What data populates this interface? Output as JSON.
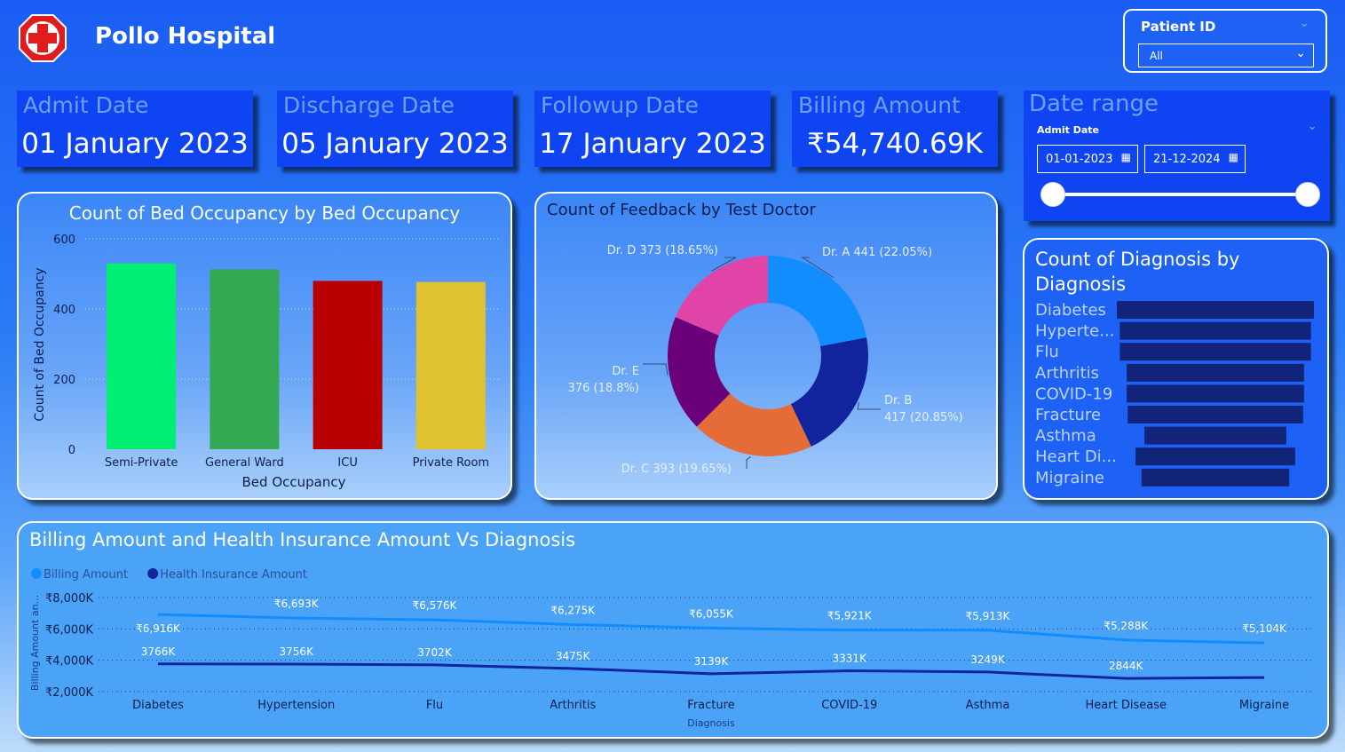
{
  "app": {
    "title": "Pollo Hospital",
    "logo_icon": "red-cross-icon"
  },
  "patient_slicer": {
    "label": "Patient ID",
    "value": "All"
  },
  "cards": [
    {
      "label": "Admit Date",
      "value": "01 January 2023"
    },
    {
      "label": "Discharge Date",
      "value": "05 January 2023"
    },
    {
      "label": "Followup Date",
      "value": "17 January 2023"
    },
    {
      "label": "Billing Amount",
      "value": "₹54,740.69K"
    }
  ],
  "date_range": {
    "title": "Date range",
    "field": "Admit Date",
    "start": "01-01-2023",
    "end": "21-12-2024"
  },
  "chart_data": [
    {
      "type": "bar",
      "title": "Count of Bed Occupancy by Bed Occupancy",
      "xlabel": "Bed Occupancy",
      "ylabel": "Count of Bed Occupancy",
      "categories": [
        "Semi-Private",
        "General Ward",
        "ICU",
        "Private Room"
      ],
      "values": [
        530,
        513,
        480,
        477
      ],
      "colors": [
        "#00ee72",
        "#34a853",
        "#b80000",
        "#e0c12e"
      ],
      "ylim": [
        0,
        600
      ],
      "yticks": [
        "0",
        "200",
        "400",
        "600"
      ],
      "grid": true
    },
    {
      "type": "pie",
      "title": "Count of Feedback by Test Doctor",
      "slices": [
        {
          "label": "Dr. A",
          "value": 441,
          "text": "Dr. A 441 (22.05%)",
          "color": "#118dff"
        },
        {
          "label": "Dr. B",
          "value": 417,
          "text": [
            "Dr. B",
            "417 (20.85%)"
          ],
          "color": "#12239e"
        },
        {
          "label": "Dr. C",
          "value": 393,
          "text": "Dr. C 393 (19.65%)",
          "color": "#e66c37"
        },
        {
          "label": "Dr. E",
          "value": 376,
          "text": [
            "Dr. E",
            "376 (18.8%)"
          ],
          "color": "#6b007b"
        },
        {
          "label": "Dr. D",
          "value": 373,
          "text": "Dr. D 373 (18.65%)",
          "color": "#e044a7"
        }
      ]
    },
    {
      "type": "bar",
      "title": "Count of Diagnosis by Diagnosis",
      "categories": [
        "Diabetes",
        "Hyperte...",
        "Flu",
        "Arthritis",
        "COVID-19",
        "Fracture",
        "Asthma",
        "Heart Di...",
        "Migraine"
      ],
      "values": [
        100,
        97,
        97,
        90,
        90,
        89,
        72,
        81,
        75
      ],
      "color": "#12237a"
    },
    {
      "type": "line",
      "title": "Billing Amount and Health Insurance Amount Vs Diagnosis",
      "xlabel": "Diagnosis",
      "ylabel": "Billing Amount an...",
      "categories": [
        "Diabetes",
        "Hypertension",
        "Flu",
        "Arthritis",
        "Fracture",
        "COVID-19",
        "Asthma",
        "Heart Disease",
        "Migraine"
      ],
      "yticks": [
        "₹2,000K",
        "₹4,000K",
        "₹6,000K",
        "₹8,000K"
      ],
      "ylim": [
        2000,
        8000
      ],
      "legend_position": "top-left",
      "series": [
        {
          "name": "Billing Amount",
          "color": "#118dff",
          "values": [
            6916,
            6693,
            6576,
            6275,
            6055,
            5921,
            5913,
            5288,
            5104
          ],
          "labels": [
            "₹6,916K",
            "₹6,693K",
            "₹6,576K",
            "₹6,275K",
            "₹6,055K",
            "₹5,921K",
            "₹5,913K",
            "₹5,288K",
            "₹5,104K"
          ]
        },
        {
          "name": "Health Insurance Amount",
          "color": "#12239e",
          "values": [
            3766,
            3756,
            3702,
            3475,
            3139,
            3331,
            3249,
            2844,
            2900
          ],
          "labels": [
            "3766K",
            "3756K",
            "3702K",
            "3475K",
            "3139K",
            "3331K",
            "3249K",
            "2844K",
            ""
          ]
        }
      ]
    }
  ]
}
